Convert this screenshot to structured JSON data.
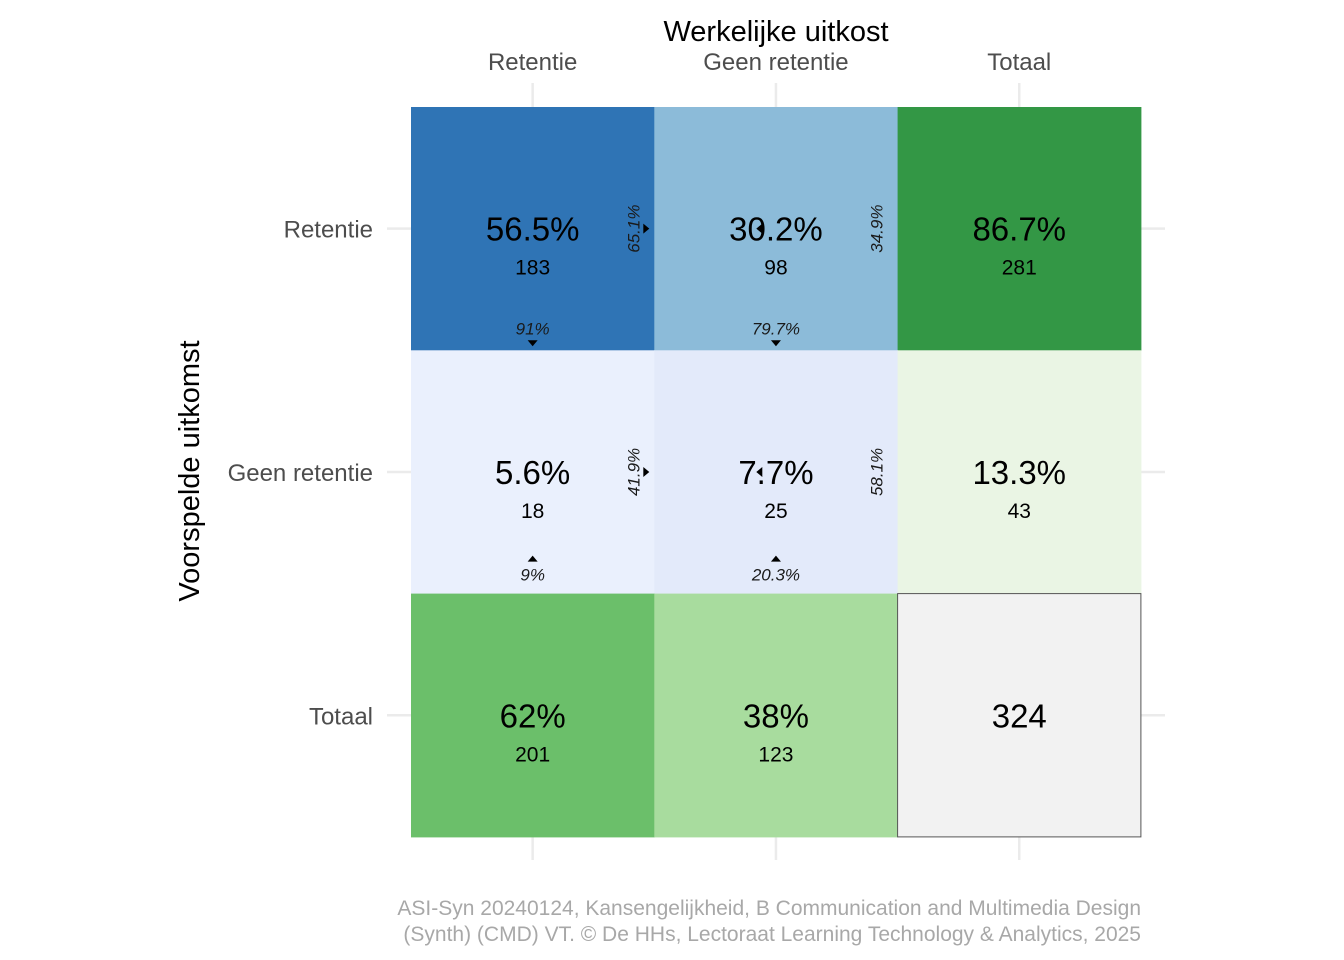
{
  "chart_data": {
    "type": "heatmap",
    "x_title": "Werkelijke uitkost",
    "y_title": "Voorspelde uitkomst",
    "columns": [
      "Retentie",
      "Geen retentie",
      "Totaal"
    ],
    "rows": [
      "Retentie",
      "Geen retentie",
      "Totaal"
    ],
    "cells": [
      [
        {
          "pct": "56.5%",
          "count": "183",
          "color": "#2f74b5"
        },
        {
          "pct": "30.2%",
          "count": "98",
          "color": "#8cbbd9"
        },
        {
          "pct": "86.7%",
          "count": "281",
          "color": "#339745"
        }
      ],
      [
        {
          "pct": "5.6%",
          "count": "18",
          "color": "#eaf0fd"
        },
        {
          "pct": "7.7%",
          "count": "25",
          "color": "#e3eafa"
        },
        {
          "pct": "13.3%",
          "count": "43",
          "color": "#eaf5e4"
        }
      ],
      [
        {
          "pct": "62%",
          "count": "201",
          "color": "#6bbf6a"
        },
        {
          "pct": "38%",
          "count": "123",
          "color": "#a8dc9e"
        },
        {
          "pct": "",
          "count": "324",
          "color": "#f2f2f2"
        }
      ]
    ],
    "row_share": [
      [
        "65.1%",
        "34.9%"
      ],
      [
        "41.9%",
        "58.1%"
      ]
    ],
    "col_share": [
      [
        "91%",
        "79.7%"
      ],
      [
        "9%",
        "20.3%"
      ]
    ],
    "grid": true,
    "legend": "none"
  },
  "caption": {
    "line1": "ASI-Syn 20240124, Kansengelijkheid, B Communication and Multimedia Design",
    "line2": "(Synth) (CMD) VT. © De HHs, Lectoraat Learning Technology & Analytics, 2025"
  }
}
